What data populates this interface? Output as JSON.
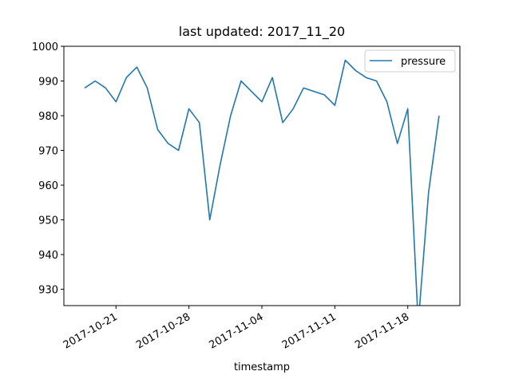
{
  "chart_data": {
    "type": "line",
    "title": "last updated: 2017_11_20",
    "x_label": "timestamp",
    "x": [
      "2017-10-18",
      "2017-10-19",
      "2017-10-20",
      "2017-10-21",
      "2017-10-22",
      "2017-10-23",
      "2017-10-24",
      "2017-10-25",
      "2017-10-26",
      "2017-10-27",
      "2017-10-28",
      "2017-10-29",
      "2017-10-30",
      "2017-10-31",
      "2017-11-01",
      "2017-11-02",
      "2017-11-03",
      "2017-11-04",
      "2017-11-05",
      "2017-11-06",
      "2017-11-07",
      "2017-11-08",
      "2017-11-09",
      "2017-11-10",
      "2017-11-11",
      "2017-11-12",
      "2017-11-13",
      "2017-11-14",
      "2017-11-15",
      "2017-11-16",
      "2017-11-17",
      "2017-11-18",
      "2017-11-19",
      "2017-11-20",
      "2017-11-21"
    ],
    "series": [
      {
        "name": "pressure",
        "color": "#1f77b4",
        "values": [
          988,
          990,
          988,
          984,
          991,
          994,
          988,
          976,
          972,
          970,
          982,
          978,
          950,
          966,
          980,
          990,
          987,
          984,
          991,
          978,
          982,
          988,
          987,
          986,
          983,
          996,
          993,
          991,
          990,
          984,
          972,
          982,
          920,
          958,
          980
        ]
      }
    ],
    "xlim": [
      "2017-10-16",
      "2017-11-23"
    ],
    "xticks": [
      "2017-10-21",
      "2017-10-28",
      "2017-11-04",
      "2017-11-11",
      "2017-11-18"
    ],
    "ylim": [
      925.3,
      1000
    ],
    "yticks": [
      930,
      940,
      950,
      960,
      970,
      980,
      990,
      1000
    ],
    "legend": "upper right"
  }
}
